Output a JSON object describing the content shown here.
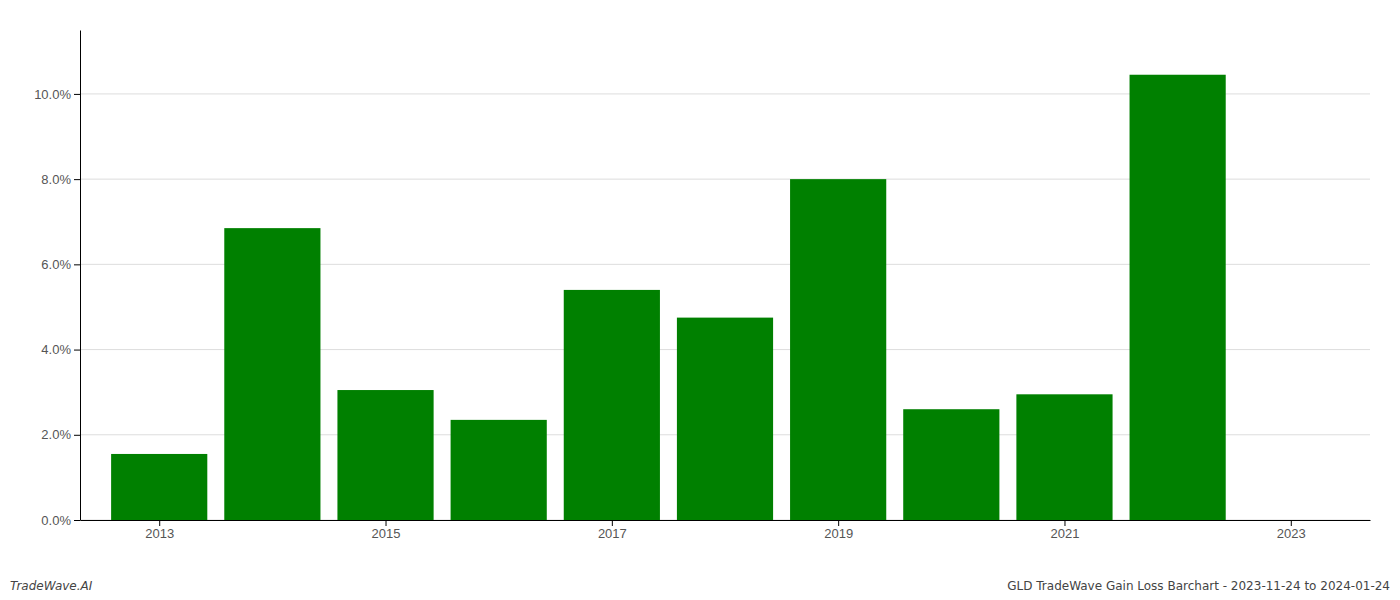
{
  "chart_data": {
    "type": "bar",
    "x": [
      2013,
      2014,
      2015,
      2016,
      2017,
      2018,
      2019,
      2020,
      2021,
      2022
    ],
    "values": [
      1.55,
      6.85,
      3.05,
      2.35,
      5.4,
      4.75,
      8.0,
      2.6,
      2.95,
      10.45
    ],
    "color": "#008000",
    "xlim": [
      2012.3,
      2023.7
    ],
    "xticks": [
      2013,
      2015,
      2017,
      2019,
      2021,
      2023
    ],
    "ylim": [
      0,
      11.5
    ],
    "yticks": [
      {
        "value": 0.0,
        "label": "0.0%"
      },
      {
        "value": 2.0,
        "label": "2.0%"
      },
      {
        "value": 4.0,
        "label": "4.0%"
      },
      {
        "value": 6.0,
        "label": "6.0%"
      },
      {
        "value": 8.0,
        "label": "8.0%"
      },
      {
        "value": 10.0,
        "label": "10.0%"
      }
    ],
    "grid": true,
    "annotations": [
      "TradeWave.AI",
      "GLD TradeWave Gain Loss Barchart - 2023-11-24 to 2024-01-24"
    ]
  }
}
